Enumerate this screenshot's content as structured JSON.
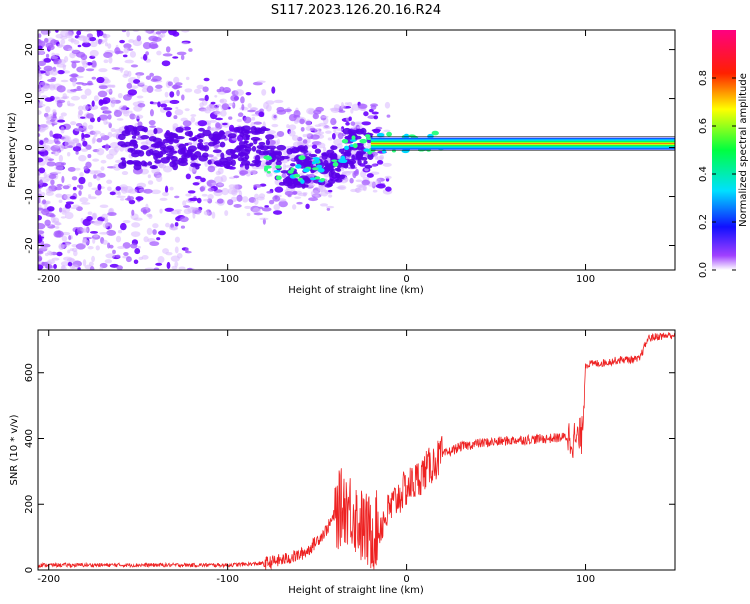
{
  "title": "S117.2023.126.20.16.R24",
  "colors": {
    "snr_line": "#ee2222",
    "axis": "#000000",
    "scatter": "#6a00ff"
  },
  "chart_data": [
    {
      "type": "heatmap",
      "xlabel": "Height of straight line (km)",
      "ylabel": "Frequency (Hz)",
      "xlim": [
        -206,
        150
      ],
      "ylim": [
        -25,
        24
      ],
      "x_ticks": [
        -200,
        -100,
        0,
        100
      ],
      "y_ticks": [
        -20,
        -10,
        0,
        10,
        20
      ],
      "colorbar": {
        "label": "Normalized spectral amplitude",
        "range": [
          0,
          1
        ],
        "ticks": [
          0.0,
          0.2,
          0.4,
          0.6,
          0.8
        ],
        "colormap": "rainbow (violet-blue-cyan-green-yellow-red-magenta)",
        "placement": "right"
      },
      "features": {
        "noise_region_x": [
          -206,
          -30
        ],
        "ridge_start_x": -20,
        "ridge_frequency_hz": 0.8,
        "ridge_peak_amplitude": 0.85
      }
    },
    {
      "type": "line",
      "xlabel": "Height of straight line (km)",
      "ylabel": "SNR (10 * v/v)",
      "xlim": [
        -206,
        150
      ],
      "ylim": [
        0,
        730
      ],
      "x_ticks": [
        -200,
        -100,
        0,
        100
      ],
      "y_ticks": [
        0,
        200,
        400,
        600
      ],
      "series": [
        {
          "x": [
            -206,
            -150,
            -100,
            -80,
            -70,
            -60,
            -55,
            -50,
            -45,
            -40,
            -35,
            -30,
            -25,
            -20,
            -15,
            -10,
            -5,
            0,
            5,
            10,
            20,
            30,
            40,
            60,
            80,
            90,
            95,
            98,
            100,
            110,
            120,
            130,
            135,
            140,
            150
          ],
          "y": [
            15,
            15,
            15,
            20,
            30,
            45,
            60,
            90,
            120,
            170,
            200,
            180,
            130,
            110,
            130,
            180,
            220,
            250,
            270,
            300,
            350,
            375,
            385,
            395,
            400,
            405,
            395,
            410,
            625,
            630,
            640,
            640,
            705,
            710,
            715
          ]
        }
      ]
    }
  ]
}
